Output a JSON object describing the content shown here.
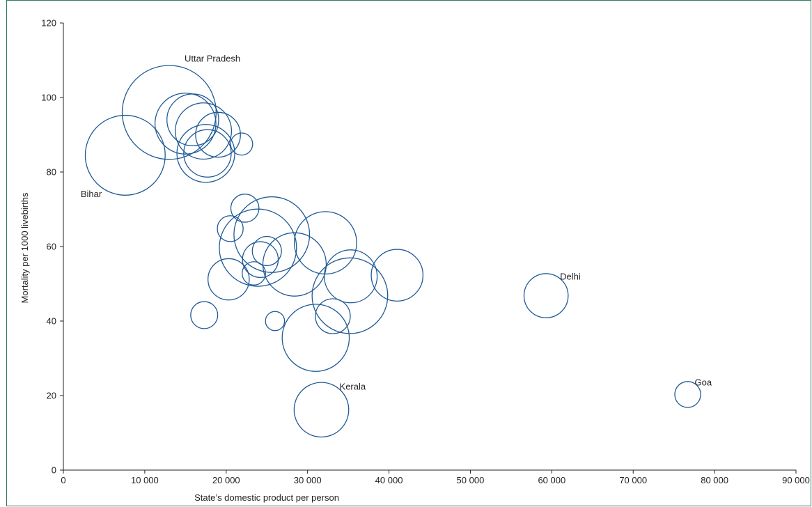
{
  "chart_data": {
    "type": "scatter",
    "title": "",
    "xlabel": "State’s domestic product per person",
    "ylabel": "Mortality per 1000 livebirths",
    "xlim": [
      0,
      90000
    ],
    "ylim": [
      0,
      120
    ],
    "xticks": [
      0,
      10000,
      20000,
      30000,
      40000,
      50000,
      60000,
      70000,
      80000,
      90000
    ],
    "xtick_labels": [
      "0",
      "10 000",
      "20 000",
      "30 000",
      "40 000",
      "50 000",
      "60 000",
      "70 000",
      "80 000",
      "90 000"
    ],
    "yticks": [
      0,
      20,
      40,
      60,
      80,
      100,
      120
    ],
    "ytick_labels": [
      "0",
      "20",
      "40",
      "60",
      "80",
      "100",
      "120"
    ],
    "grid": false,
    "bubble_color": "#1f5a96",
    "points": [
      {
        "x": 13000,
        "y": 96,
        "size": 145,
        "label": "Uttar Pradesh"
      },
      {
        "x": 7600,
        "y": 84.5,
        "size": 105,
        "label": "Bihar"
      },
      {
        "x": 15000,
        "y": 93,
        "size": 61
      },
      {
        "x": 15900,
        "y": 94,
        "size": 44
      },
      {
        "x": 17200,
        "y": 91,
        "size": 52
      },
      {
        "x": 17500,
        "y": 85,
        "size": 55
      },
      {
        "x": 17700,
        "y": 85,
        "size": 37
      },
      {
        "x": 19000,
        "y": 90,
        "size": 33
      },
      {
        "x": 21900,
        "y": 87.5,
        "size": 8
      },
      {
        "x": 22300,
        "y": 70.3,
        "size": 13
      },
      {
        "x": 20500,
        "y": 64.8,
        "size": 11
      },
      {
        "x": 25600,
        "y": 63.2,
        "size": 94
      },
      {
        "x": 23900,
        "y": 59.7,
        "size": 98
      },
      {
        "x": 32200,
        "y": 61,
        "size": 64
      },
      {
        "x": 28400,
        "y": 55.2,
        "size": 66
      },
      {
        "x": 24200,
        "y": 56.5,
        "size": 21
      },
      {
        "x": 25000,
        "y": 58.8,
        "size": 14
      },
      {
        "x": 23400,
        "y": 52.8,
        "size": 9
      },
      {
        "x": 20300,
        "y": 51.2,
        "size": 28
      },
      {
        "x": 35300,
        "y": 52,
        "size": 46
      },
      {
        "x": 41000,
        "y": 52.3,
        "size": 44
      },
      {
        "x": 35200,
        "y": 46.8,
        "size": 94
      },
      {
        "x": 33100,
        "y": 41.3,
        "size": 20
      },
      {
        "x": 17300,
        "y": 41.6,
        "size": 12
      },
      {
        "x": 26000,
        "y": 40,
        "size": 6
      },
      {
        "x": 31000,
        "y": 35.5,
        "size": 74
      },
      {
        "x": 59300,
        "y": 46.8,
        "size": 32,
        "label": "Delhi"
      },
      {
        "x": 31700,
        "y": 16.2,
        "size": 49,
        "label": "Kerala"
      },
      {
        "x": 76700,
        "y": 20.3,
        "size": 11,
        "label": "Goa"
      }
    ]
  }
}
